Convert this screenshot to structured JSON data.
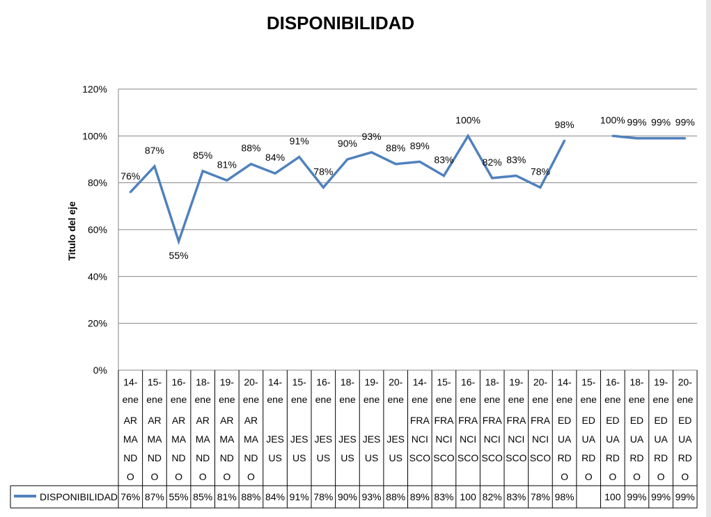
{
  "chart_data": {
    "type": "line",
    "title": "DISPONIBILIDAD",
    "ylabel": "Titulo del eje",
    "xlabel": "",
    "ylim": [
      0,
      120
    ],
    "y_ticks": [
      "0%",
      "20%",
      "40%",
      "60%",
      "80%",
      "100%",
      "120%"
    ],
    "grid": true,
    "legend": "data-table-left",
    "categories": [
      {
        "date": "14-ene",
        "name": "AR MA ND O"
      },
      {
        "date": "15-ene",
        "name": "AR MA ND O"
      },
      {
        "date": "16-ene",
        "name": "AR MA ND O"
      },
      {
        "date": "18-ene",
        "name": "AR MA ND O"
      },
      {
        "date": "19-ene",
        "name": "AR MA ND O"
      },
      {
        "date": "20-ene",
        "name": "AR MA ND O"
      },
      {
        "date": "14-ene",
        "name": "JES US"
      },
      {
        "date": "15-ene",
        "name": "JES US"
      },
      {
        "date": "16-ene",
        "name": "JES US"
      },
      {
        "date": "18-ene",
        "name": "JES US"
      },
      {
        "date": "19-ene",
        "name": "JES US"
      },
      {
        "date": "20-ene",
        "name": "JES US"
      },
      {
        "date": "14-ene",
        "name": "FRA NCI SCO"
      },
      {
        "date": "15-ene",
        "name": "FRA NCI SCO"
      },
      {
        "date": "16-ene",
        "name": "FRA NCI SCO"
      },
      {
        "date": "18-ene",
        "name": "FRA NCI SCO"
      },
      {
        "date": "19-ene",
        "name": "FRA NCI SCO"
      },
      {
        "date": "20-ene",
        "name": "FRA NCI SCO"
      },
      {
        "date": "14-ene",
        "name": "ED UA RD O"
      },
      {
        "date": "15-ene",
        "name": "ED UA RD O"
      },
      {
        "date": "16-ene",
        "name": "ED UA RD O"
      },
      {
        "date": "18-ene",
        "name": "ED UA RD O"
      },
      {
        "date": "19-ene",
        "name": "ED UA RD O"
      },
      {
        "date": "20-ene",
        "name": "ED UA RD O"
      }
    ],
    "series": [
      {
        "name": "DISPONIBILIDAD",
        "color": "#4f81bd",
        "values": [
          76,
          87,
          55,
          85,
          81,
          88,
          84,
          91,
          78,
          90,
          93,
          88,
          89,
          83,
          100,
          82,
          83,
          78,
          98,
          null,
          100,
          99,
          99,
          99
        ],
        "data_labels": [
          "76%",
          "87%",
          "55%",
          "85%",
          "81%",
          "88%",
          "84%",
          "91%",
          "78%",
          "90%",
          "93%",
          "88%",
          "89%",
          "83%",
          "100%",
          "82%",
          "83%",
          "78%",
          "98%",
          "",
          "100%",
          "99%",
          "99%",
          "99%"
        ],
        "table_labels": [
          "76%",
          "87%",
          "55%",
          "85%",
          "81%",
          "88%",
          "84%",
          "91%",
          "78%",
          "90%",
          "93%",
          "88%",
          "89%",
          "83%",
          "100",
          "82%",
          "83%",
          "78%",
          "98%",
          "",
          "100",
          "99%",
          "99%",
          "99%"
        ]
      }
    ]
  }
}
